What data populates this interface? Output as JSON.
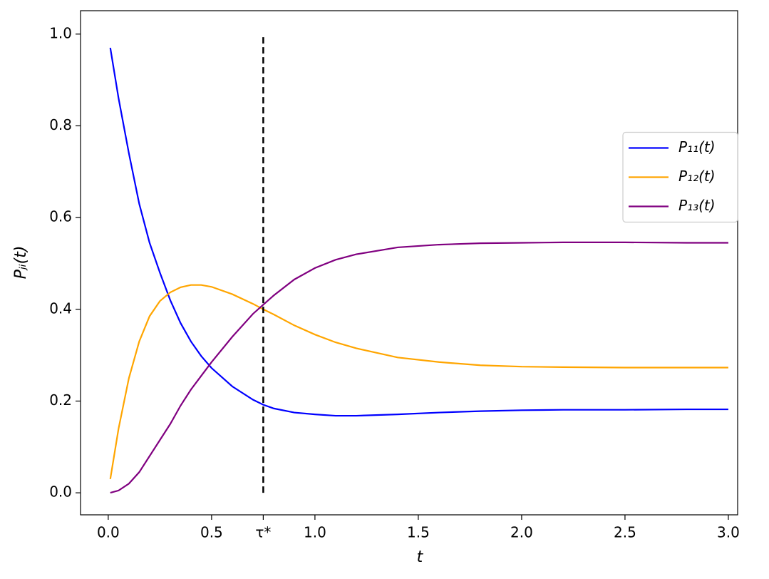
{
  "chart_data": {
    "type": "line",
    "xlabel": "t",
    "ylabel": "Pⱼᵢ(t)",
    "xlim": [
      -0.134,
      3.045
    ],
    "ylim": [
      -0.048,
      1.051
    ],
    "xticks": [
      {
        "value": 0,
        "label": "0.0"
      },
      0.5,
      {
        "value": 0.75,
        "label": "τ*"
      },
      {
        "value": 1,
        "label": "1.0"
      },
      1.5,
      {
        "value": 2,
        "label": "2.0"
      },
      2.5,
      {
        "value": 3,
        "label": "3.0"
      }
    ],
    "yticks": [
      {
        "value": 0,
        "label": "0.0"
      },
      0.2,
      0.4,
      0.6,
      0.8,
      {
        "value": 1,
        "label": "1.0"
      }
    ],
    "legend": "right",
    "x": [
      0.01,
      0.05,
      0.1,
      0.15,
      0.2,
      0.25,
      0.3,
      0.35,
      0.4,
      0.45,
      0.5,
      0.6,
      0.7,
      0.75,
      0.8,
      0.9,
      1.0,
      1.1,
      1.2,
      1.4,
      1.6,
      1.8,
      2.0,
      2.2,
      2.5,
      2.8,
      3.0
    ],
    "series": [
      {
        "name": "P₁₁(t)",
        "color": "#0000ff",
        "values": [
          0.97,
          0.86,
          0.74,
          0.63,
          0.545,
          0.48,
          0.42,
          0.37,
          0.33,
          0.298,
          0.272,
          0.232,
          0.203,
          0.192,
          0.184,
          0.175,
          0.171,
          0.168,
          0.168,
          0.171,
          0.175,
          0.178,
          0.18,
          0.181,
          0.181,
          0.182,
          0.182
        ]
      },
      {
        "name": "P₁₂(t)",
        "color": "#ffa500",
        "values": [
          0.03,
          0.14,
          0.25,
          0.33,
          0.385,
          0.418,
          0.437,
          0.448,
          0.453,
          0.453,
          0.449,
          0.433,
          0.412,
          0.4,
          0.389,
          0.365,
          0.345,
          0.328,
          0.315,
          0.295,
          0.285,
          0.278,
          0.275,
          0.274,
          0.273,
          0.273,
          0.273
        ]
      },
      {
        "name": "P₁₃(t)",
        "color": "#800080",
        "values": [
          0.0,
          0.005,
          0.02,
          0.045,
          0.08,
          0.115,
          0.15,
          0.19,
          0.225,
          0.255,
          0.285,
          0.34,
          0.39,
          0.41,
          0.43,
          0.465,
          0.49,
          0.508,
          0.52,
          0.535,
          0.541,
          0.544,
          0.545,
          0.546,
          0.546,
          0.545,
          0.545
        ]
      }
    ],
    "vline": {
      "x": 0.75,
      "ymin": 0,
      "ymax": 1,
      "color": "#000000",
      "style": "dashed"
    }
  }
}
